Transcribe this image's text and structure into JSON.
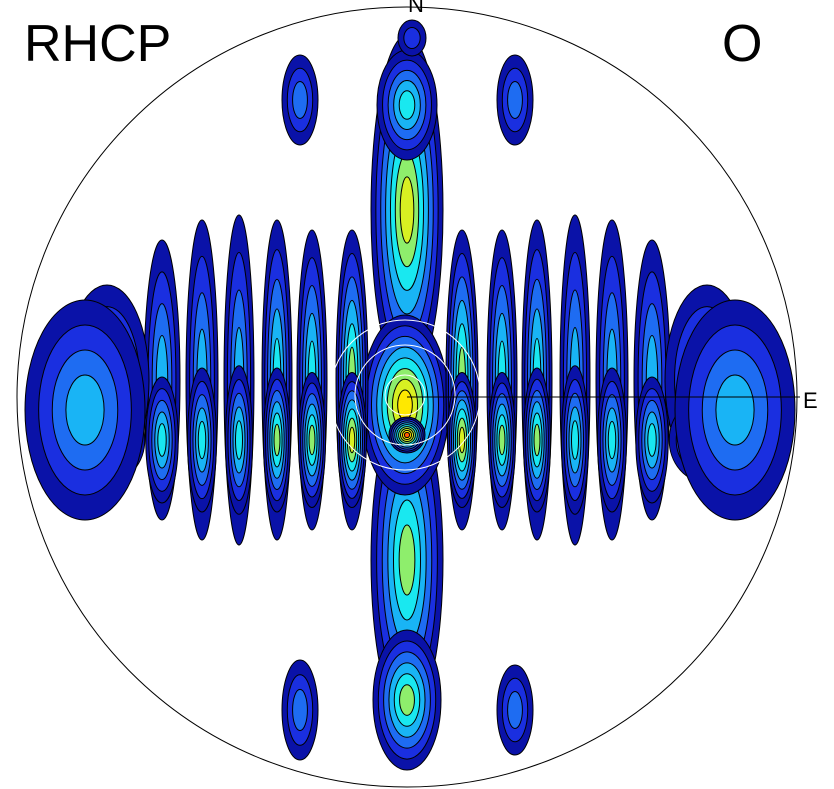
{
  "labels": {
    "top_left": "RHCP",
    "top_right": "O",
    "north": "N",
    "east": "E"
  },
  "chart_data": {
    "type": "heatmap",
    "projection": "polar",
    "title": "",
    "colormap": [
      "#0a12a8",
      "#1a2fe0",
      "#1e6cf2",
      "#19b4f5",
      "#19e8f0",
      "#8eee6c",
      "#d8f022",
      "#ffe800",
      "#ff5a00"
    ],
    "contour_line_color": "#000000",
    "reference_circle_color": "#ffffff",
    "grid": false,
    "features": [
      {
        "name": "central-band",
        "orientation": "vertical",
        "peak_level": 8
      },
      {
        "name": "side-lobes",
        "orientation": "vertical",
        "count_per_side": 7
      }
    ]
  }
}
